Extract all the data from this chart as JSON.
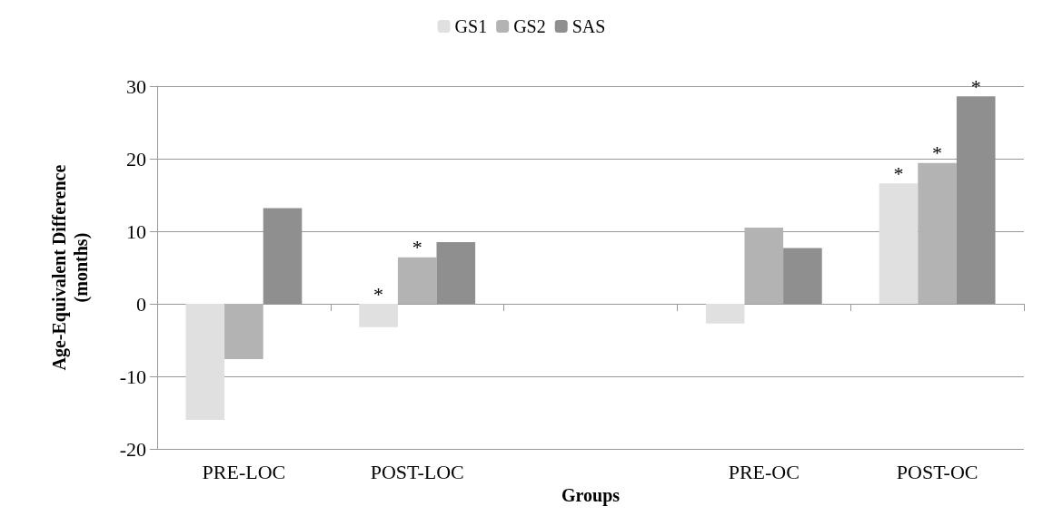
{
  "chart_data": {
    "type": "bar",
    "xlabel": "Groups",
    "ylabel": "Age-Equivalent Difference\n(months)",
    "categories": [
      "PRE-LOC",
      "POST-LOC",
      null,
      "PRE-OC",
      "POST-OC"
    ],
    "series": [
      {
        "name": "GS1",
        "color": "#e0e0e0",
        "values": [
          -16,
          -3.2,
          null,
          -2.7,
          16.6
        ],
        "value_labels": [
          null,
          "*",
          null,
          null,
          "*"
        ]
      },
      {
        "name": "GS2",
        "color": "#b3b3b3",
        "values": [
          -7.6,
          6.4,
          null,
          10.5,
          19.4
        ],
        "value_labels": [
          null,
          "*",
          null,
          null,
          "*"
        ]
      },
      {
        "name": "SAS",
        "color": "#8f8f8f",
        "values": [
          13.2,
          8.5,
          null,
          7.7,
          28.6
        ],
        "value_labels": [
          null,
          null,
          null,
          null,
          "*"
        ]
      }
    ],
    "ylim": [
      -20,
      30
    ],
    "yticks": [
      -20,
      -10,
      0,
      10,
      20,
      30
    ],
    "grid": "y",
    "legend": "top"
  }
}
